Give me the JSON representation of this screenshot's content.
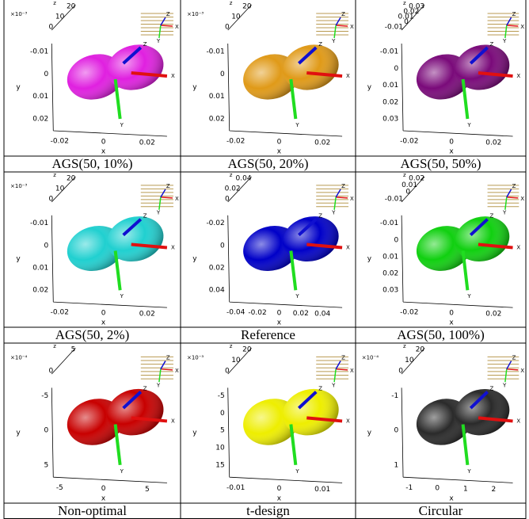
{
  "panels": [
    {
      "caption": "AGS(50, 10%)",
      "color": "#e020e0",
      "scale": "×10⁻³",
      "z_ticks": [
        "20",
        "10",
        "0"
      ],
      "y_ticks": [
        "-0.01",
        "0",
        "0.01",
        "0.02"
      ],
      "x_ticks": [
        "-0.02",
        "0",
        "0.02"
      ],
      "axis_labels": [
        "z",
        "y",
        "x"
      ],
      "arrow_labels": [
        "X",
        "Y",
        "Z"
      ],
      "inset_labels": [
        "X",
        "Y",
        "Z"
      ]
    },
    {
      "caption": "AGS(50, 20%)",
      "color": "#e09a18",
      "scale": "×10⁻³",
      "z_ticks": [
        "20",
        "10",
        "0"
      ],
      "y_ticks": [
        "-0.01",
        "0",
        "0.01",
        "0.02"
      ],
      "x_ticks": [
        "-0.02",
        "0",
        "0.02"
      ],
      "axis_labels": [
        "z",
        "y",
        "x"
      ],
      "arrow_labels": [
        "X",
        "Y",
        "Z"
      ],
      "inset_labels": [
        "X",
        "Y",
        "Z"
      ]
    },
    {
      "caption": "AGS(50, 50%)",
      "color": "#7a0a7a",
      "z_ticks": [
        "0.03",
        "0.02",
        "0.01",
        "0",
        "-0.01"
      ],
      "y_ticks": [
        "-0.01",
        "0",
        "0.01",
        "0.02",
        "0.03"
      ],
      "x_ticks": [
        "-0.02",
        "0",
        "0.02"
      ],
      "axis_labels": [
        "z",
        "y",
        "x"
      ],
      "arrow_labels": [
        "X",
        "Y",
        "Z"
      ],
      "inset_labels": [
        "X",
        "Y",
        "Z"
      ]
    },
    {
      "caption": "AGS(50, 2%)",
      "color": "#20d0d0",
      "scale": "×10⁻³",
      "z_ticks": [
        "20",
        "10",
        "0"
      ],
      "y_ticks": [
        "-0.01",
        "0",
        "0.01",
        "0.02"
      ],
      "x_ticks": [
        "-0.02",
        "0",
        "0.02"
      ],
      "axis_labels": [
        "z",
        "y",
        "x"
      ],
      "arrow_labels": [
        "X",
        "Y",
        "Z"
      ],
      "inset_labels": [
        "X",
        "Y",
        "Z"
      ]
    },
    {
      "caption": "Reference",
      "color": "#0000c8",
      "z_ticks": [
        "0.04",
        "0.02",
        "0"
      ],
      "y_ticks": [
        "-0.02",
        "0",
        "0.02",
        "0.04"
      ],
      "x_ticks": [
        "-0.04",
        "-0.02",
        "0",
        "0.02",
        "0.04"
      ],
      "axis_labels": [
        "z",
        "y",
        "x"
      ],
      "arrow_labels": [
        "X",
        "Y",
        "Z"
      ],
      "inset_labels": [
        "X",
        "Y",
        "Z"
      ]
    },
    {
      "caption": "AGS(50, 100%)",
      "color": "#10d010",
      "z_ticks": [
        "0.02",
        "0.01",
        "0",
        "-0.01"
      ],
      "y_ticks": [
        "-0.01",
        "0",
        "0.01",
        "0.02",
        "0.03"
      ],
      "x_ticks": [
        "-0.02",
        "0",
        "0.02"
      ],
      "axis_labels": [
        "z",
        "y",
        "x"
      ],
      "arrow_labels": [
        "X",
        "Y",
        "Z"
      ],
      "inset_labels": [
        "X",
        "Y",
        "Z"
      ]
    },
    {
      "caption": "Non-optimal",
      "color": "#c80000",
      "scale": "×10⁻⁴",
      "z_ticks": [
        "5",
        "0"
      ],
      "y_ticks": [
        "-5",
        "0",
        "5"
      ],
      "x_ticks": [
        "-5",
        "0",
        "5"
      ],
      "axis_labels": [
        "z",
        "y",
        "x"
      ],
      "arrow_labels": [
        "X",
        "Y",
        "Z"
      ],
      "inset_labels": [
        "X",
        "Y",
        "Z"
      ]
    },
    {
      "caption": "t-design",
      "color": "#eeee00",
      "scale": "×10⁻³",
      "z_ticks": [
        "20",
        "10",
        "0"
      ],
      "y_ticks": [
        "-5",
        "0",
        "5",
        "10",
        "15"
      ],
      "x_ticks": [
        "-0.01",
        "0",
        "0.01"
      ],
      "axis_labels": [
        "z",
        "y",
        "x"
      ],
      "arrow_labels": [
        "X",
        "Y",
        "Z"
      ],
      "inset_labels": [
        "X",
        "Y",
        "Z"
      ]
    },
    {
      "caption": "Circular",
      "color": "#2a2a2a",
      "scale": "×10⁻⁴",
      "z_ticks": [
        "20",
        "10",
        "0"
      ],
      "y_ticks": [
        "-1",
        "0",
        "1"
      ],
      "x_ticks": [
        "-1",
        "0",
        "1",
        "2"
      ],
      "axis_labels": [
        "z",
        "y",
        "x"
      ],
      "arrow_labels": [
        "X",
        "Y",
        "Z"
      ],
      "inset_labels": [
        "X",
        "Y",
        "Z"
      ]
    }
  ]
}
